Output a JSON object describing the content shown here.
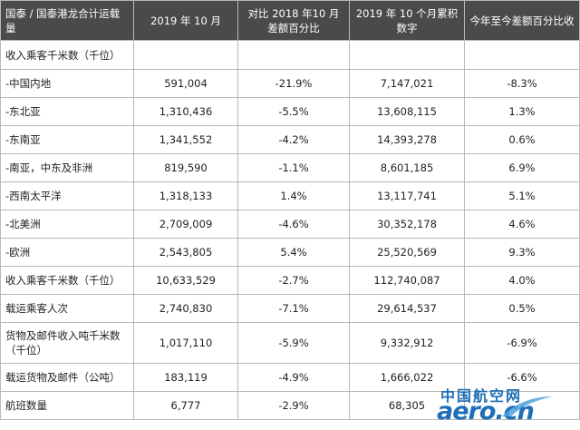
{
  "header": [
    "国泰 / 国泰港龙合计运载量",
    "2019 年 10 月",
    "对比 2018 年10 月差额百分比",
    "2019 年 10 个月累积数字",
    "今年至今差额百分比收"
  ],
  "section_label": "收入乘客千米数（千位）",
  "rows": [
    {
      "label": "-中国内地",
      "month": "591,004",
      "month_change": "-21.9%",
      "ytd": "7,147,021",
      "ytd_change": "-8.3%"
    },
    {
      "label": "-东北亚",
      "month": "1,310,436",
      "month_change": "-5.5%",
      "ytd": "13,608,115",
      "ytd_change": "1.3%"
    },
    {
      "label": "-东南亚",
      "month": "1,341,552",
      "month_change": "-4.2%",
      "ytd": "14,393,278",
      "ytd_change": "0.6%"
    },
    {
      "label": "-南亚，中东及非洲",
      "month": "819,590",
      "month_change": "-1.1%",
      "ytd": "8,601,185",
      "ytd_change": "6.9%"
    },
    {
      "label": "-西南太平洋",
      "month": "1,318,133",
      "month_change": "1.4%",
      "ytd": "13,117,741",
      "ytd_change": "5.1%"
    },
    {
      "label": "-北美洲",
      "month": "2,709,009",
      "month_change": "-4.6%",
      "ytd": "30,352,178",
      "ytd_change": "4.6%"
    },
    {
      "label": "-欧洲",
      "month": "2,543,805",
      "month_change": "5.4%",
      "ytd": "25,520,569",
      "ytd_change": "9.3%"
    },
    {
      "label": "收入乘客千米数（千位）",
      "month": "10,633,529",
      "month_change": "-2.7%",
      "ytd": "112,740,087",
      "ytd_change": "4.0%"
    },
    {
      "label": "载运乘客人次",
      "month": "2,740,830",
      "month_change": "-7.1%",
      "ytd": "29,614,537",
      "ytd_change": "0.5%"
    },
    {
      "label": "货物及邮件收入吨千米数（千位）",
      "month": "1,017,110",
      "month_change": "-5.9%",
      "ytd": "9,332,912",
      "ytd_change": "-6.9%"
    },
    {
      "label": "载运货物及邮件（公吨）",
      "month": "183,119",
      "month_change": "-4.9%",
      "ytd": "1,666,022",
      "ytd_change": "-6.6%"
    },
    {
      "label": "航班数量",
      "month": "6,777",
      "month_change": "-2.9%",
      "ytd": "68,305",
      "ytd_change": ""
    }
  ],
  "watermark": {
    "cn": "中国航空网",
    "en": "aero.cn",
    "color": "#1e6fb8"
  }
}
